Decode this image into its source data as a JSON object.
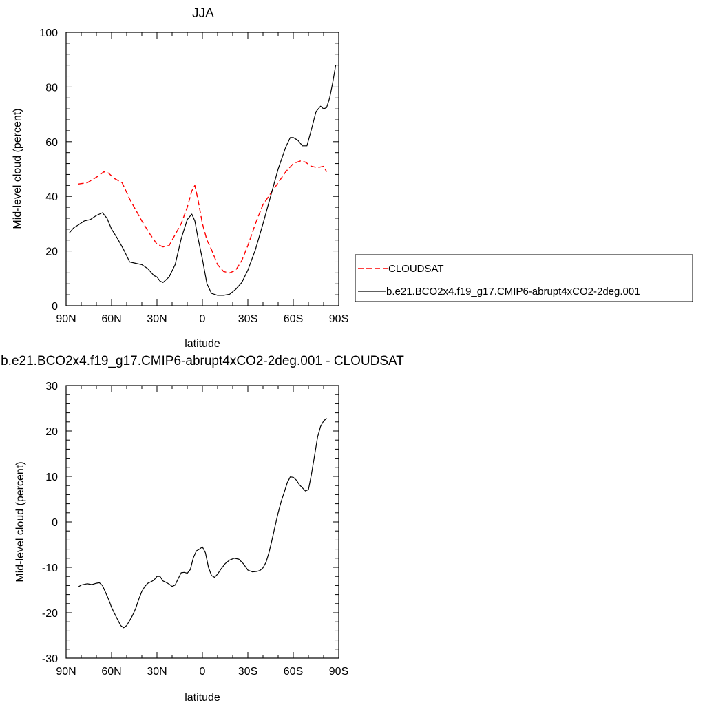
{
  "chart_data": [
    {
      "type": "line",
      "title": "JJA",
      "xlabel": "latitude",
      "ylabel": "Mid-level cloud (percent)",
      "x_direction": "north-to-south",
      "xlim": [
        90,
        -90
      ],
      "ylim": [
        0,
        100
      ],
      "x_ticks": [
        {
          "value": 90,
          "label": "90N"
        },
        {
          "value": 60,
          "label": "60N"
        },
        {
          "value": 30,
          "label": "30N"
        },
        {
          "value": 0,
          "label": "0"
        },
        {
          "value": -30,
          "label": "30S"
        },
        {
          "value": -60,
          "label": "60S"
        },
        {
          "value": -90,
          "label": "90S"
        }
      ],
      "y_ticks": [
        {
          "value": 0,
          "label": "0"
        },
        {
          "value": 20,
          "label": "20"
        },
        {
          "value": 40,
          "label": "40"
        },
        {
          "value": 60,
          "label": "60"
        },
        {
          "value": 80,
          "label": "80"
        },
        {
          "value": 100,
          "label": "100"
        }
      ],
      "grid": false,
      "legend": "outside-right",
      "series": [
        {
          "name": "CLOUDSAT",
          "color": "#ff0000",
          "dash": "dashed",
          "x": [
            82,
            76,
            70,
            65,
            62,
            58,
            53,
            48,
            44,
            40,
            35,
            30,
            26,
            22,
            18,
            14,
            10,
            7,
            5,
            3,
            0,
            -3,
            -6,
            -10,
            -14,
            -18,
            -22,
            -26,
            -30,
            -35,
            -40,
            -45,
            -50,
            -55,
            -60,
            -65,
            -68,
            -72,
            -76,
            -80,
            -82
          ],
          "y": [
            44.5,
            45,
            47,
            49,
            48.5,
            46.5,
            45,
            39,
            35,
            31,
            26.5,
            22.5,
            21.5,
            22,
            26,
            30,
            36,
            42,
            44,
            39,
            30,
            24,
            20.5,
            15,
            12.5,
            12,
            13,
            16.5,
            22,
            30,
            37,
            41,
            45,
            49,
            52,
            53,
            52.5,
            51,
            50.5,
            51,
            49
          ]
        },
        {
          "name": "b.e21.BCO2x4.f19_g17.CMIP6-abrupt4xCO2-2deg.001",
          "color": "#000000",
          "dash": "solid",
          "x": [
            88,
            85,
            82,
            78,
            74,
            70,
            66,
            63,
            60,
            56,
            52,
            48,
            44,
            40,
            36,
            32,
            30,
            28,
            26,
            24,
            22,
            18,
            14,
            10,
            7,
            5,
            3,
            0,
            -3,
            -6,
            -10,
            -14,
            -18,
            -22,
            -26,
            -30,
            -35,
            -40,
            -45,
            -50,
            -55,
            -58,
            -60,
            -63,
            -66,
            -69,
            -72,
            -75,
            -78,
            -80,
            -82,
            -84,
            -86,
            -88
          ],
          "y": [
            26.5,
            28.5,
            29.5,
            31,
            31.5,
            33,
            34,
            32,
            28,
            24.5,
            20.5,
            16,
            15.5,
            15,
            13.5,
            11,
            10.5,
            9,
            8.5,
            9.5,
            10.5,
            15,
            24.5,
            31.5,
            33.5,
            31,
            25,
            17,
            8,
            4.5,
            3.8,
            3.8,
            4.2,
            6,
            8.5,
            13,
            20.5,
            30,
            40,
            50,
            58,
            61.5,
            61.5,
            60.5,
            58.5,
            58.5,
            64.5,
            71,
            73,
            72,
            72.5,
            76,
            81.5,
            88
          ]
        }
      ]
    },
    {
      "type": "line",
      "title": "b.e21.BCO2x4.f19_g17.CMIP6-abrupt4xCO2-2deg.001 - CLOUDSAT",
      "xlabel": "latitude",
      "ylabel": "Mid-level cloud (percent)",
      "x_direction": "north-to-south",
      "xlim": [
        90,
        -90
      ],
      "ylim": [
        -30,
        30
      ],
      "x_ticks": [
        {
          "value": 90,
          "label": "90N"
        },
        {
          "value": 60,
          "label": "60N"
        },
        {
          "value": 30,
          "label": "30N"
        },
        {
          "value": 0,
          "label": "0"
        },
        {
          "value": -30,
          "label": "30S"
        },
        {
          "value": -60,
          "label": "60S"
        },
        {
          "value": -90,
          "label": "90S"
        }
      ],
      "y_ticks": [
        {
          "value": -30,
          "label": "-30"
        },
        {
          "value": -20,
          "label": "-20"
        },
        {
          "value": -10,
          "label": "-10"
        },
        {
          "value": 0,
          "label": "0"
        },
        {
          "value": 10,
          "label": "10"
        },
        {
          "value": 20,
          "label": "20"
        },
        {
          "value": 30,
          "label": "30"
        }
      ],
      "grid": false,
      "legend": "none",
      "series": [
        {
          "color": "#000000",
          "dash": "solid",
          "x": [
            82,
            80,
            76,
            73,
            70,
            68,
            66,
            64,
            62,
            60,
            58,
            56,
            54,
            52,
            50,
            48,
            46,
            44,
            42,
            40,
            38,
            36,
            34,
            32,
            30,
            28,
            26,
            24,
            22,
            20,
            18,
            16,
            14,
            12,
            10,
            8,
            6,
            4,
            2,
            0,
            -2,
            -4,
            -6,
            -8,
            -10,
            -12,
            -15,
            -18,
            -21,
            -24,
            -27,
            -30,
            -33,
            -36,
            -38,
            -40,
            -42,
            -44,
            -46,
            -48,
            -50,
            -52,
            -54,
            -56,
            -58,
            -60,
            -62,
            -64,
            -66,
            -68,
            -70,
            -72,
            -74,
            -76,
            -78,
            -80,
            -82
          ],
          "y": [
            -14.3,
            -13.9,
            -13.6,
            -13.8,
            -13.5,
            -13.4,
            -14,
            -15.5,
            -17,
            -18.8,
            -20.2,
            -21.5,
            -22.8,
            -23.3,
            -22.8,
            -21.7,
            -20.5,
            -19,
            -17,
            -15.3,
            -14.2,
            -13.5,
            -13.2,
            -12.8,
            -12,
            -12,
            -13,
            -13.3,
            -13.7,
            -14.2,
            -13.9,
            -12.5,
            -11.2,
            -11.1,
            -11.3,
            -10.5,
            -7.9,
            -6.4,
            -6,
            -5.5,
            -6.8,
            -10,
            -11.8,
            -12.2,
            -11.5,
            -10.5,
            -9.2,
            -8.4,
            -8,
            -8.2,
            -9.2,
            -10.6,
            -11,
            -10.9,
            -10.7,
            -10.1,
            -8.9,
            -6.7,
            -3.9,
            -0.9,
            2,
            4.5,
            6.5,
            8.6,
            9.9,
            9.8,
            9.2,
            8.2,
            7.5,
            6.8,
            7.1,
            10.5,
            14.5,
            18.6,
            21,
            22.2,
            22.8
          ]
        }
      ]
    }
  ]
}
